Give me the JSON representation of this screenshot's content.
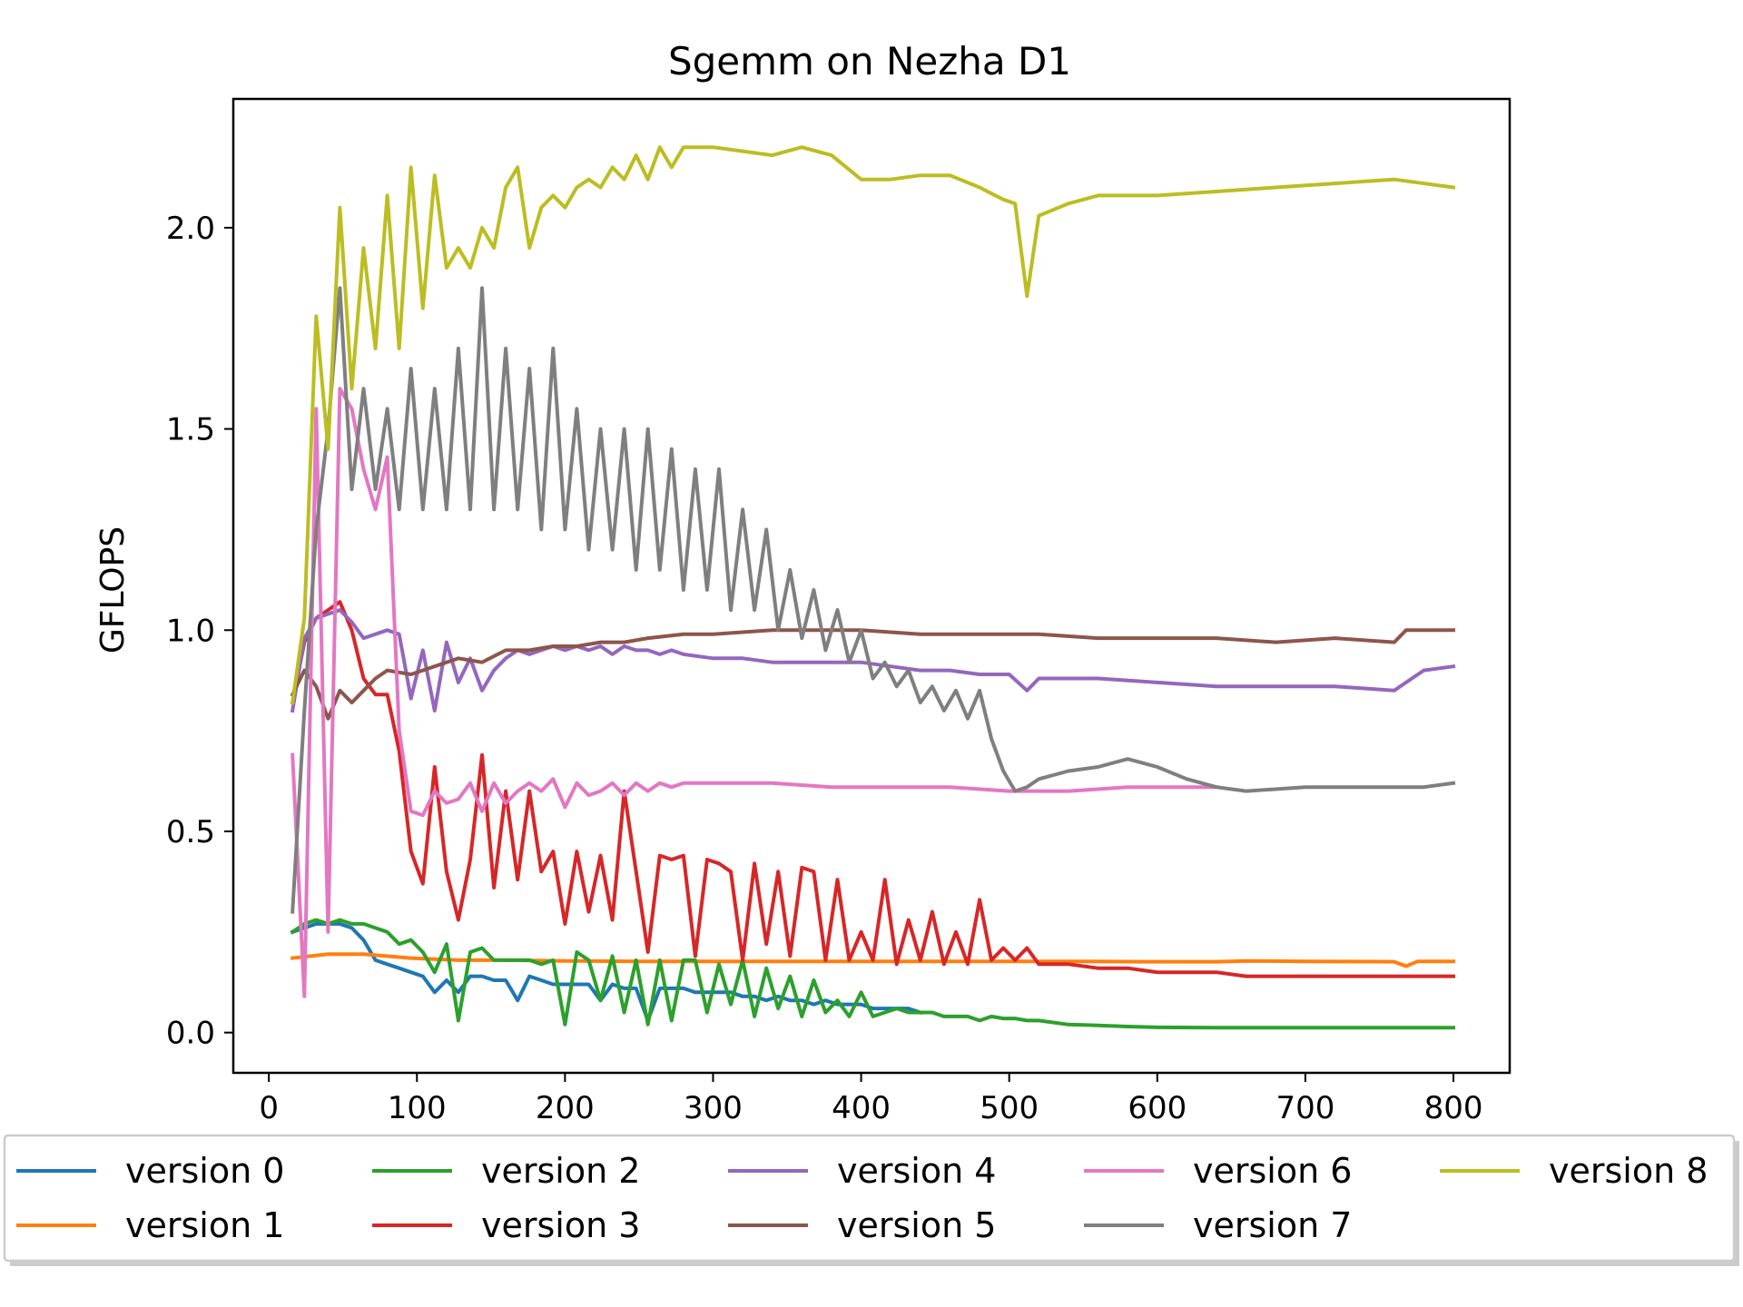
{
  "chart_data": {
    "type": "line",
    "title": "Sgemm on Nezha D1",
    "xlabel": "",
    "ylabel": "GFLOPS",
    "xlim": [
      -24,
      838
    ],
    "ylim": [
      -0.1,
      2.32
    ],
    "xticks": [
      0,
      100,
      200,
      300,
      400,
      500,
      600,
      700,
      800
    ],
    "xtick_labels": [
      "0",
      "100",
      "200",
      "300",
      "400",
      "500",
      "600",
      "700",
      "800"
    ],
    "yticks": [
      0.0,
      0.5,
      1.0,
      1.5,
      2.0
    ],
    "ytick_labels": [
      "0.0",
      "0.5",
      "1.0",
      "1.5",
      "2.0"
    ],
    "grid": false,
    "legend_position": "bottom",
    "series": [
      {
        "name": "version 0",
        "color": "#1f77b4",
        "x": [
          16,
          24,
          32,
          40,
          48,
          56,
          64,
          72,
          80,
          88,
          96,
          104,
          112,
          120,
          128,
          136,
          144,
          152,
          160,
          168,
          176,
          184,
          192,
          200,
          208,
          216,
          224,
          232,
          240,
          248,
          256,
          264,
          272,
          280,
          288,
          296,
          304,
          312,
          320,
          328,
          336,
          344,
          352,
          360,
          368,
          376,
          384,
          392,
          400,
          408,
          416,
          424,
          432,
          440
        ],
        "y": [
          0.25,
          0.26,
          0.27,
          0.27,
          0.27,
          0.26,
          0.23,
          0.18,
          0.17,
          0.16,
          0.15,
          0.14,
          0.1,
          0.13,
          0.1,
          0.14,
          0.14,
          0.13,
          0.13,
          0.08,
          0.14,
          0.13,
          0.12,
          0.12,
          0.12,
          0.12,
          0.08,
          0.12,
          0.11,
          0.11,
          0.03,
          0.11,
          0.11,
          0.11,
          0.1,
          0.1,
          0.1,
          0.1,
          0.09,
          0.09,
          0.08,
          0.09,
          0.08,
          0.08,
          0.07,
          0.08,
          0.07,
          0.07,
          0.07,
          0.06,
          0.06,
          0.06,
          0.06,
          0.05
        ]
      },
      {
        "name": "version 1",
        "color": "#ff7f0e",
        "x": [
          16,
          40,
          64,
          96,
          128,
          160,
          200,
          250,
          300,
          350,
          400,
          450,
          500,
          550,
          600,
          640,
          660,
          700,
          760,
          768,
          776,
          800
        ],
        "y": [
          0.185,
          0.195,
          0.195,
          0.185,
          0.18,
          0.18,
          0.178,
          0.177,
          0.177,
          0.177,
          0.177,
          0.177,
          0.177,
          0.177,
          0.176,
          0.176,
          0.178,
          0.177,
          0.176,
          0.165,
          0.177,
          0.177
        ]
      },
      {
        "name": "version 2",
        "color": "#2ca02c",
        "x": [
          16,
          24,
          32,
          40,
          48,
          56,
          64,
          72,
          80,
          88,
          96,
          104,
          112,
          120,
          128,
          136,
          144,
          152,
          160,
          168,
          176,
          184,
          192,
          200,
          208,
          216,
          224,
          232,
          240,
          248,
          256,
          264,
          272,
          280,
          288,
          296,
          304,
          312,
          320,
          328,
          336,
          344,
          352,
          360,
          368,
          376,
          384,
          392,
          400,
          408,
          416,
          424,
          432,
          440,
          448,
          456,
          464,
          472,
          480,
          488,
          496,
          504,
          512,
          520,
          540,
          560,
          580,
          600,
          640,
          700,
          760,
          800
        ],
        "y": [
          0.25,
          0.27,
          0.28,
          0.27,
          0.28,
          0.27,
          0.27,
          0.26,
          0.25,
          0.22,
          0.23,
          0.2,
          0.15,
          0.22,
          0.03,
          0.2,
          0.21,
          0.18,
          0.18,
          0.18,
          0.18,
          0.17,
          0.18,
          0.02,
          0.2,
          0.18,
          0.08,
          0.19,
          0.05,
          0.18,
          0.02,
          0.18,
          0.03,
          0.18,
          0.18,
          0.05,
          0.17,
          0.07,
          0.18,
          0.04,
          0.16,
          0.06,
          0.14,
          0.04,
          0.13,
          0.05,
          0.08,
          0.04,
          0.1,
          0.04,
          0.05,
          0.06,
          0.05,
          0.05,
          0.05,
          0.04,
          0.04,
          0.04,
          0.03,
          0.04,
          0.035,
          0.035,
          0.03,
          0.03,
          0.02,
          0.018,
          0.015,
          0.013,
          0.012,
          0.012,
          0.012,
          0.012
        ]
      },
      {
        "name": "version 3",
        "color": "#d62728",
        "x": [
          16,
          24,
          32,
          40,
          48,
          56,
          64,
          72,
          80,
          88,
          96,
          104,
          112,
          120,
          128,
          136,
          144,
          152,
          160,
          168,
          176,
          184,
          192,
          200,
          208,
          216,
          224,
          232,
          240,
          248,
          256,
          264,
          272,
          280,
          288,
          296,
          304,
          312,
          320,
          328,
          336,
          344,
          352,
          360,
          368,
          376,
          384,
          392,
          400,
          408,
          416,
          424,
          432,
          440,
          448,
          456,
          464,
          472,
          480,
          488,
          496,
          504,
          512,
          520,
          540,
          560,
          580,
          600,
          620,
          640,
          660,
          700,
          740,
          780,
          800
        ],
        "y": [
          0.82,
          0.97,
          1.03,
          1.05,
          1.07,
          1.0,
          0.88,
          0.84,
          0.84,
          0.7,
          0.45,
          0.37,
          0.66,
          0.4,
          0.28,
          0.43,
          0.69,
          0.36,
          0.6,
          0.38,
          0.6,
          0.4,
          0.45,
          0.27,
          0.45,
          0.3,
          0.44,
          0.28,
          0.6,
          0.4,
          0.2,
          0.44,
          0.43,
          0.44,
          0.19,
          0.43,
          0.42,
          0.4,
          0.18,
          0.42,
          0.22,
          0.4,
          0.19,
          0.41,
          0.4,
          0.18,
          0.38,
          0.18,
          0.25,
          0.18,
          0.38,
          0.17,
          0.28,
          0.18,
          0.3,
          0.17,
          0.25,
          0.17,
          0.33,
          0.18,
          0.21,
          0.18,
          0.21,
          0.17,
          0.17,
          0.16,
          0.16,
          0.15,
          0.15,
          0.15,
          0.14,
          0.14,
          0.14,
          0.14,
          0.14
        ]
      },
      {
        "name": "version 4",
        "color": "#9467bd",
        "x": [
          16,
          24,
          32,
          40,
          48,
          56,
          64,
          72,
          80,
          88,
          96,
          104,
          112,
          120,
          128,
          136,
          144,
          152,
          160,
          168,
          176,
          184,
          192,
          200,
          208,
          216,
          224,
          232,
          240,
          248,
          256,
          264,
          272,
          280,
          300,
          320,
          340,
          360,
          380,
          400,
          420,
          440,
          460,
          480,
          500,
          512,
          520,
          560,
          600,
          640,
          680,
          720,
          760,
          768,
          780,
          800
        ],
        "y": [
          0.8,
          0.98,
          1.03,
          1.04,
          1.05,
          1.02,
          0.98,
          0.99,
          1.0,
          0.99,
          0.83,
          0.95,
          0.8,
          0.97,
          0.87,
          0.93,
          0.85,
          0.9,
          0.93,
          0.95,
          0.94,
          0.95,
          0.96,
          0.95,
          0.96,
          0.95,
          0.96,
          0.94,
          0.96,
          0.95,
          0.95,
          0.94,
          0.95,
          0.94,
          0.93,
          0.93,
          0.92,
          0.92,
          0.92,
          0.92,
          0.91,
          0.9,
          0.9,
          0.89,
          0.89,
          0.85,
          0.88,
          0.88,
          0.87,
          0.86,
          0.86,
          0.86,
          0.85,
          0.87,
          0.9,
          0.91
        ]
      },
      {
        "name": "version 5",
        "color": "#8c564b",
        "x": [
          16,
          24,
          32,
          40,
          48,
          56,
          64,
          72,
          80,
          96,
          112,
          128,
          144,
          160,
          176,
          192,
          208,
          224,
          240,
          256,
          280,
          300,
          340,
          360,
          400,
          440,
          480,
          520,
          560,
          600,
          640,
          680,
          720,
          760,
          768,
          800
        ],
        "y": [
          0.84,
          0.9,
          0.86,
          0.78,
          0.85,
          0.82,
          0.85,
          0.88,
          0.9,
          0.89,
          0.91,
          0.93,
          0.92,
          0.95,
          0.95,
          0.96,
          0.96,
          0.97,
          0.97,
          0.98,
          0.99,
          0.99,
          1.0,
          1.0,
          1.0,
          0.99,
          0.99,
          0.99,
          0.98,
          0.98,
          0.98,
          0.97,
          0.98,
          0.97,
          1.0,
          1.0
        ]
      },
      {
        "name": "version 6",
        "color": "#e377c2",
        "x": [
          16,
          24,
          32,
          40,
          48,
          56,
          64,
          72,
          80,
          88,
          96,
          104,
          112,
          120,
          128,
          136,
          144,
          152,
          160,
          168,
          176,
          184,
          192,
          200,
          208,
          216,
          224,
          232,
          240,
          248,
          256,
          264,
          272,
          280,
          300,
          340,
          380,
          420,
          460,
          500,
          540,
          580,
          620,
          640
        ],
        "y": [
          0.69,
          0.09,
          1.55,
          0.25,
          1.6,
          1.55,
          1.4,
          1.3,
          1.43,
          0.75,
          0.55,
          0.54,
          0.6,
          0.57,
          0.58,
          0.62,
          0.55,
          0.62,
          0.57,
          0.6,
          0.62,
          0.6,
          0.63,
          0.56,
          0.62,
          0.59,
          0.6,
          0.62,
          0.59,
          0.62,
          0.6,
          0.62,
          0.61,
          0.62,
          0.62,
          0.62,
          0.61,
          0.61,
          0.61,
          0.6,
          0.6,
          0.61,
          0.61,
          0.61
        ]
      },
      {
        "name": "version 7",
        "color": "#7f7f7f",
        "x": [
          16,
          24,
          32,
          40,
          48,
          56,
          64,
          72,
          80,
          88,
          96,
          104,
          112,
          120,
          128,
          136,
          144,
          152,
          160,
          168,
          176,
          184,
          192,
          200,
          208,
          216,
          224,
          232,
          240,
          248,
          256,
          264,
          272,
          280,
          288,
          296,
          304,
          312,
          320,
          328,
          336,
          344,
          352,
          360,
          368,
          376,
          384,
          392,
          400,
          408,
          416,
          424,
          432,
          440,
          448,
          456,
          464,
          472,
          480,
          488,
          496,
          504,
          512,
          520,
          540,
          560,
          580,
          600,
          620,
          640,
          660,
          700,
          740,
          780,
          800
        ],
        "y": [
          0.3,
          0.8,
          1.25,
          1.5,
          1.85,
          1.35,
          1.6,
          1.35,
          1.55,
          1.3,
          1.65,
          1.3,
          1.6,
          1.3,
          1.7,
          1.3,
          1.85,
          1.3,
          1.7,
          1.3,
          1.65,
          1.25,
          1.7,
          1.25,
          1.55,
          1.2,
          1.5,
          1.2,
          1.5,
          1.15,
          1.5,
          1.15,
          1.45,
          1.1,
          1.4,
          1.1,
          1.4,
          1.05,
          1.3,
          1.05,
          1.25,
          1.0,
          1.15,
          0.98,
          1.1,
          0.95,
          1.05,
          0.92,
          1.0,
          0.88,
          0.92,
          0.86,
          0.9,
          0.82,
          0.86,
          0.8,
          0.85,
          0.78,
          0.85,
          0.73,
          0.65,
          0.6,
          0.61,
          0.63,
          0.65,
          0.66,
          0.68,
          0.66,
          0.63,
          0.61,
          0.6,
          0.61,
          0.61,
          0.61,
          0.62
        ]
      },
      {
        "name": "version 8",
        "color": "#bcbd22",
        "x": [
          16,
          24,
          32,
          40,
          48,
          56,
          64,
          72,
          80,
          88,
          96,
          104,
          112,
          120,
          128,
          136,
          144,
          152,
          160,
          168,
          176,
          184,
          192,
          200,
          208,
          216,
          224,
          232,
          240,
          248,
          256,
          264,
          272,
          280,
          300,
          320,
          340,
          360,
          380,
          400,
          420,
          440,
          460,
          480,
          496,
          504,
          512,
          520,
          540,
          560,
          600,
          640,
          680,
          720,
          760,
          800
        ],
        "y": [
          0.82,
          1.03,
          1.78,
          1.45,
          2.05,
          1.6,
          1.95,
          1.7,
          2.08,
          1.7,
          2.15,
          1.8,
          2.13,
          1.9,
          1.95,
          1.9,
          2.0,
          1.95,
          2.1,
          2.15,
          1.95,
          2.05,
          2.08,
          2.05,
          2.1,
          2.12,
          2.1,
          2.15,
          2.12,
          2.18,
          2.12,
          2.2,
          2.15,
          2.2,
          2.2,
          2.19,
          2.18,
          2.2,
          2.18,
          2.12,
          2.12,
          2.13,
          2.13,
          2.1,
          2.07,
          2.06,
          1.83,
          2.03,
          2.06,
          2.08,
          2.08,
          2.09,
          2.1,
          2.11,
          2.12,
          2.1
        ]
      }
    ]
  }
}
